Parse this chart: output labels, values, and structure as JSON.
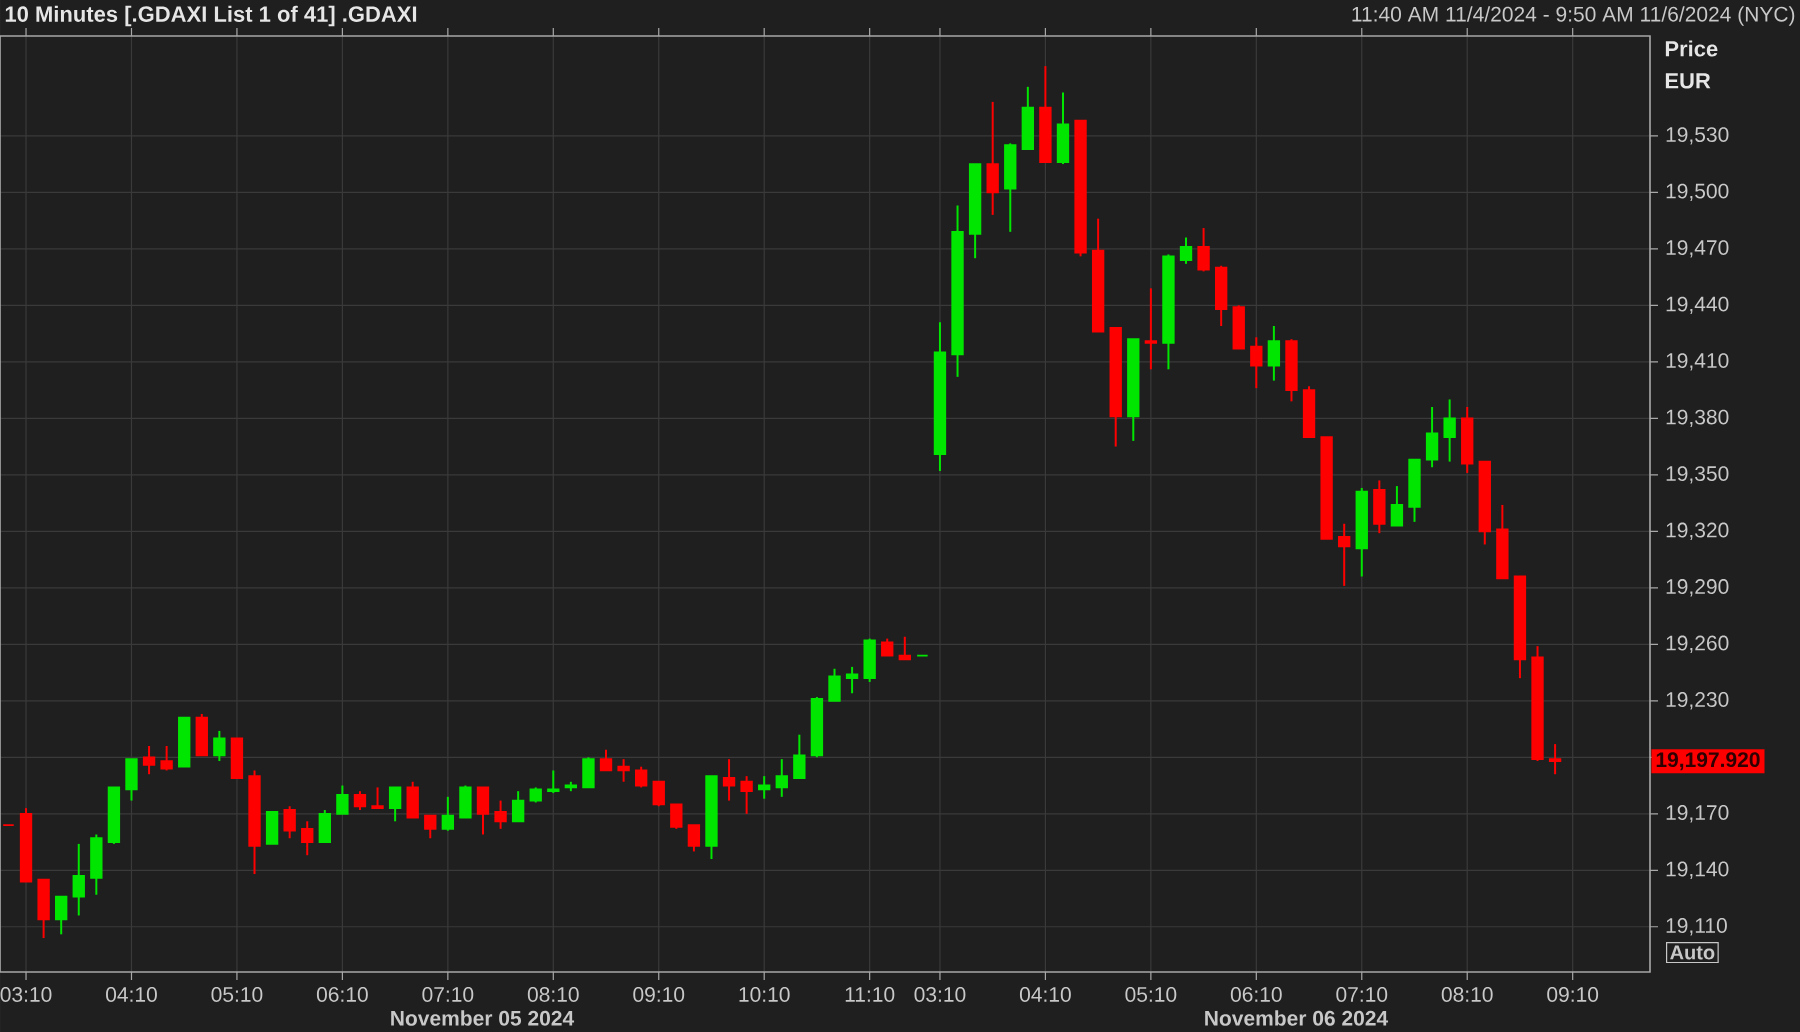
{
  "chart_data": {
    "type": "candlestick",
    "title": "10 Minutes [.GDAXI List 1 of 41] .GDAXI",
    "subtitle": "11:40 AM 11/4/2024 - 9:50 AM 11/6/2024 (NYC)",
    "ylabel": "Price EUR",
    "categories": [
      null,
      "03:10",
      null,
      null,
      null,
      null,
      null,
      "04:10",
      null,
      null,
      null,
      null,
      null,
      "05:10",
      null,
      null,
      null,
      null,
      null,
      "06:10",
      null,
      null,
      null,
      null,
      null,
      "07:10",
      null,
      null,
      null,
      null,
      null,
      "08:10",
      null,
      null,
      null,
      null,
      null,
      "09:10",
      null,
      null,
      null,
      null,
      null,
      "10:10",
      null,
      null,
      null,
      null,
      null,
      "11:10",
      null,
      null,
      null,
      "03:10",
      null,
      null,
      null,
      null,
      null,
      "04:10",
      null,
      null,
      null,
      null,
      null,
      "05:10",
      null,
      null,
      null,
      null,
      null,
      "06:10",
      null,
      null,
      null,
      null,
      null,
      "07:10",
      null,
      null,
      null,
      null,
      null,
      "08:10",
      null,
      null,
      null,
      null,
      null,
      "09:10"
    ],
    "ohlc": [
      [
        19164,
        19164,
        19164,
        19164
      ],
      [
        19170,
        19173,
        19134,
        19134
      ],
      [
        19135,
        19135,
        19104,
        19114
      ],
      [
        19114,
        19126,
        19106,
        19126
      ],
      [
        19126,
        19154,
        19116,
        19137
      ],
      [
        19136,
        19159,
        19127,
        19157
      ],
      [
        19155,
        19184,
        19154,
        19184
      ],
      [
        19183,
        19199,
        19177,
        19199
      ],
      [
        19200,
        19206,
        19191,
        19196
      ],
      [
        19198,
        19206,
        19193,
        19194
      ],
      [
        19195,
        19221,
        19195,
        19221
      ],
      [
        19221,
        19223,
        19201,
        19201
      ],
      [
        19201,
        19214,
        19198,
        19210
      ],
      [
        19210,
        19210,
        19189,
        19189
      ],
      [
        19190,
        19193,
        19138,
        19153
      ],
      [
        19154,
        19171,
        19154,
        19171
      ],
      [
        19172,
        19174,
        19157,
        19161
      ],
      [
        19162,
        19166,
        19148,
        19155
      ],
      [
        19155,
        19172,
        19155,
        19170
      ],
      [
        19170,
        19185,
        19170,
        19180
      ],
      [
        19180,
        19182,
        19172,
        19174
      ],
      [
        19174,
        19184,
        19173,
        19173
      ],
      [
        19173,
        19184,
        19166,
        19184
      ],
      [
        19184,
        19187,
        19168,
        19168
      ],
      [
        19169,
        19169,
        19157,
        19162
      ],
      [
        19162,
        19179,
        19161,
        19169
      ],
      [
        19168,
        19185,
        19168,
        19184
      ],
      [
        19184,
        19184,
        19159,
        19170
      ],
      [
        19171,
        19177,
        19162,
        19166
      ],
      [
        19166,
        19182,
        19166,
        19177
      ],
      [
        19177,
        19184,
        19176,
        19183
      ],
      [
        19182,
        19193,
        19181,
        19183
      ],
      [
        19184,
        19187,
        19182,
        19185
      ],
      [
        19184,
        19200,
        19184,
        19199
      ],
      [
        19199,
        19204,
        19193,
        19193
      ],
      [
        19195,
        19199,
        19187,
        19193
      ],
      [
        19193,
        19195,
        19184,
        19185
      ],
      [
        19187,
        19187,
        19174,
        19175
      ],
      [
        19175,
        19175,
        19162,
        19163
      ],
      [
        19164,
        19164,
        19150,
        19153
      ],
      [
        19153,
        19190,
        19146,
        19190
      ],
      [
        19189,
        19199,
        19177,
        19185
      ],
      [
        19187,
        19190,
        19170,
        19182
      ],
      [
        19183,
        19190,
        19178,
        19185
      ],
      [
        19184,
        19199,
        19179,
        19190
      ],
      [
        19189,
        19212,
        19189,
        19201
      ],
      [
        19201,
        19232,
        19200,
        19231
      ],
      [
        19230,
        19247,
        19230,
        19243
      ],
      [
        19242,
        19248,
        19234,
        19244
      ],
      [
        19242,
        19263,
        19240,
        19262
      ],
      [
        19261,
        19263,
        19254,
        19254
      ],
      [
        19254,
        19264,
        19252,
        19252
      ],
      [
        19254,
        19254,
        19254,
        19254
      ],
      [
        19361,
        19431,
        19352,
        19415
      ],
      [
        19414,
        19493,
        19402,
        19479
      ],
      [
        19478,
        19515,
        19465,
        19515
      ],
      [
        19515,
        19548,
        19488,
        19500
      ],
      [
        19502,
        19526,
        19479,
        19525
      ],
      [
        19523,
        19556,
        19523,
        19545
      ],
      [
        19545,
        19567,
        19516,
        19516
      ],
      [
        19516,
        19553,
        19515,
        19536
      ],
      [
        19538,
        19538,
        19466,
        19468
      ],
      [
        19469,
        19486,
        19426,
        19426
      ],
      [
        19428,
        19428,
        19365,
        19381
      ],
      [
        19381,
        19422,
        19368,
        19422
      ],
      [
        19421,
        19449,
        19406,
        19420
      ],
      [
        19420,
        19467,
        19406,
        19466
      ],
      [
        19464,
        19476,
        19462,
        19471
      ],
      [
        19471,
        19481,
        19458,
        19459
      ],
      [
        19460,
        19461,
        19429,
        19438
      ],
      [
        19439,
        19440,
        19417,
        19417
      ],
      [
        19418,
        19423,
        19396,
        19408
      ],
      [
        19408,
        19429,
        19400,
        19421
      ],
      [
        19421,
        19422,
        19389,
        19395
      ],
      [
        19395,
        19397,
        19370,
        19370
      ],
      [
        19370,
        19370,
        19316,
        19316
      ],
      [
        19317,
        19324,
        19291,
        19312
      ],
      [
        19311,
        19343,
        19296,
        19341
      ],
      [
        19342,
        19347,
        19319,
        19324
      ],
      [
        19323,
        19344,
        19323,
        19334
      ],
      [
        19333,
        19358,
        19325,
        19358
      ],
      [
        19358,
        19386,
        19354,
        19372
      ],
      [
        19370,
        19390,
        19357,
        19380
      ],
      [
        19380,
        19386,
        19351,
        19356
      ],
      [
        19357,
        19357,
        19313,
        19320
      ],
      [
        19321,
        19334,
        19295,
        19295
      ],
      [
        19296,
        19296,
        19242,
        19252
      ],
      [
        19253,
        19259,
        19198,
        19199
      ],
      [
        19199,
        19207,
        19191,
        19197.92
      ],
      null
    ],
    "colors": [
      "#ff0000",
      "#ff0000",
      "#ff0000",
      "#00e600",
      "#00e600",
      "#00e600",
      "#00e600",
      "#00e600",
      "#ff0000",
      "#ff0000",
      "#00e600",
      "#ff0000",
      "#00e600",
      "#ff0000",
      "#ff0000",
      "#00e600",
      "#ff0000",
      "#ff0000",
      "#00e600",
      "#00e600",
      "#ff0000",
      "#ff0000",
      "#00e600",
      "#ff0000",
      "#ff0000",
      "#00e600",
      "#00e600",
      "#ff0000",
      "#ff0000",
      "#00e600",
      "#00e600",
      "#00e600",
      "#00e600",
      "#00e600",
      "#ff0000",
      "#ff0000",
      "#ff0000",
      "#ff0000",
      "#ff0000",
      "#ff0000",
      "#00e600",
      "#ff0000",
      "#ff0000",
      "#00e600",
      "#00e600",
      "#00e600",
      "#00e600",
      "#00e600",
      "#00e600",
      "#00e600",
      "#ff0000",
      "#ff0000",
      "#00e600",
      "#00e600",
      "#00e600",
      "#00e600",
      "#ff0000",
      "#00e600",
      "#00e600",
      "#ff0000",
      "#00e600",
      "#ff0000",
      "#ff0000",
      "#ff0000",
      "#00e600",
      "#ff0000",
      "#00e600",
      "#00e600",
      "#ff0000",
      "#ff0000",
      "#ff0000",
      "#ff0000",
      "#00e600",
      "#ff0000",
      "#ff0000",
      "#ff0000",
      "#ff0000",
      "#00e600",
      "#ff0000",
      "#00e600",
      "#00e600",
      "#00e600",
      "#00e600",
      "#ff0000",
      "#ff0000",
      "#ff0000",
      "#ff0000",
      "#ff0000",
      "#ff0000",
      null
    ],
    "ylim": [
      19086,
      19583
    ],
    "yticks": [
      {
        "value": 19110,
        "label": "19,110"
      },
      {
        "value": 19140,
        "label": "19,140"
      },
      {
        "value": 19170,
        "label": "19,170"
      },
      {
        "value": 19200,
        "label": null
      },
      {
        "value": 19230,
        "label": "19,230"
      },
      {
        "value": 19260,
        "label": "19,260"
      },
      {
        "value": 19290,
        "label": "19,290"
      },
      {
        "value": 19320,
        "label": "19,320"
      },
      {
        "value": 19350,
        "label": "19,350"
      },
      {
        "value": 19380,
        "label": "19,380"
      },
      {
        "value": 19410,
        "label": "19,410"
      },
      {
        "value": 19440,
        "label": "19,440"
      },
      {
        "value": 19470,
        "label": "19,470"
      },
      {
        "value": 19500,
        "label": "19,500"
      },
      {
        "value": 19530,
        "label": "19,530"
      }
    ],
    "grid": true,
    "annotations": [
      "November 05 2024",
      "November 06 2024",
      "19,197.920",
      "Auto"
    ]
  }
}
